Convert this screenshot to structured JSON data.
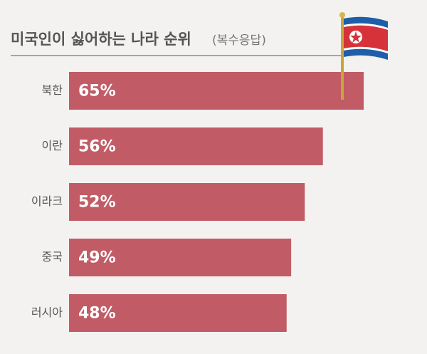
{
  "chart_data": {
    "type": "bar",
    "orientation": "horizontal",
    "title": "미국인이 싫어하는 나라 순위",
    "subtitle": "(복수응답)",
    "categories": [
      "북한",
      "이란",
      "이라크",
      "중국",
      "러시아"
    ],
    "values": [
      65,
      56,
      52,
      49,
      48
    ],
    "value_labels": [
      "65%",
      "56%",
      "52%",
      "49%",
      "48%"
    ],
    "color": "#c15c66"
  }
}
